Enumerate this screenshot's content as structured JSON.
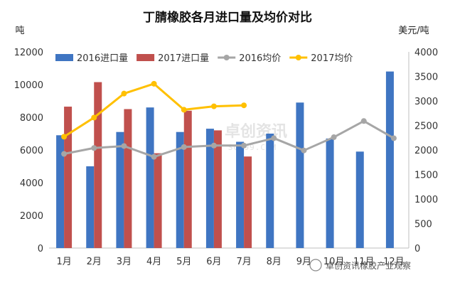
{
  "chart_data": {
    "type": "bar",
    "title": "丁腈橡胶各月进口量及均价对比",
    "ylabel_left": "吨",
    "ylabel_right": "美元/吨",
    "categories": [
      "1月",
      "2月",
      "3月",
      "4月",
      "5月",
      "6月",
      "7月",
      "8月",
      "9月",
      "10月",
      "11月",
      "12月"
    ],
    "ylim_left": [
      0,
      12000
    ],
    "ylim_right": [
      0,
      4000
    ],
    "yticks_left": [
      0,
      2000,
      4000,
      6000,
      8000,
      10000,
      12000
    ],
    "yticks_right": [
      0,
      500,
      1000,
      1500,
      2000,
      2500,
      3000,
      3500,
      4000
    ],
    "grid": false,
    "legend_position": "top",
    "series": [
      {
        "name": "2016进口量",
        "type": "bar",
        "axis": "left",
        "color": "#3f75c2",
        "values": [
          6900,
          5000,
          7100,
          8600,
          7100,
          7300,
          6500,
          7000,
          8900,
          6700,
          5900,
          10800
        ]
      },
      {
        "name": "2017进口量",
        "type": "bar",
        "axis": "left",
        "color": "#c0504d",
        "values": [
          8650,
          10150,
          8500,
          5800,
          8400,
          7200,
          5600,
          null,
          null,
          null,
          null,
          null
        ]
      },
      {
        "name": "2016均价",
        "type": "line",
        "axis": "right",
        "color": "#a6a6a6",
        "values": [
          1920,
          2040,
          2080,
          1860,
          2060,
          2090,
          2090,
          2240,
          1990,
          2260,
          2590,
          2240
        ]
      },
      {
        "name": "2017均价",
        "type": "line",
        "axis": "right",
        "color": "#ffc000",
        "values": [
          2270,
          2660,
          3150,
          3350,
          2820,
          2890,
          2910,
          null,
          null,
          null,
          null,
          null
        ]
      }
    ]
  },
  "watermark": {
    "main": "卓创资讯",
    "sub": "SCI99.COM"
  },
  "source_label": "卓创资讯橡胶产业观察"
}
